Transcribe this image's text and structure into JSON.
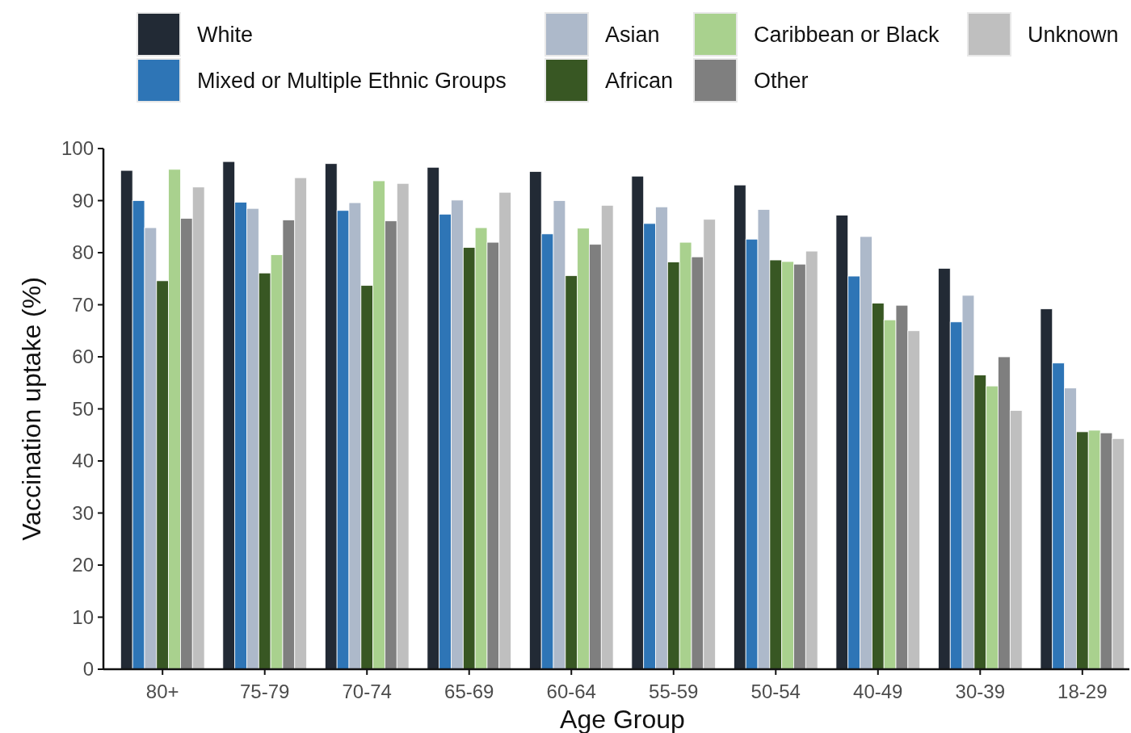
{
  "chart_data": {
    "type": "bar",
    "xlabel": "Age Group",
    "ylabel": "Vaccination uptake (%)",
    "categories": [
      "80+",
      "75-79",
      "70-74",
      "65-69",
      "60-64",
      "55-59",
      "50-54",
      "40-49",
      "30-39",
      "18-29"
    ],
    "series": [
      {
        "name": "White",
        "color": "#222a35",
        "values": [
          95.8,
          97.5,
          97.1,
          96.4,
          95.6,
          94.7,
          93,
          87.2,
          77,
          69.2
        ]
      },
      {
        "name": "Mixed or Multiple Ethnic Groups",
        "color": "#2e75b6",
        "values": [
          90,
          89.7,
          88.1,
          87.4,
          83.6,
          85.6,
          82.6,
          75.5,
          66.7,
          58.8
        ]
      },
      {
        "name": "Asian",
        "color": "#adb9ca",
        "values": [
          84.8,
          88.5,
          89.6,
          90.1,
          90,
          88.8,
          88.3,
          83.1,
          71.8,
          54
        ]
      },
      {
        "name": "African",
        "color": "#385723",
        "values": [
          74.6,
          76.1,
          73.7,
          81,
          75.6,
          78.2,
          78.6,
          70.3,
          56.5,
          45.6
        ]
      },
      {
        "name": "Caribbean or Black",
        "color": "#a9d18e",
        "values": [
          96,
          79.6,
          93.8,
          84.8,
          84.7,
          82,
          78.3,
          67.1,
          54.4,
          45.9
        ]
      },
      {
        "name": "Other",
        "color": "#7f7f7f",
        "values": [
          86.6,
          86.3,
          86.1,
          82,
          81.6,
          79.2,
          77.8,
          69.9,
          60,
          45.4
        ]
      },
      {
        "name": "Unknown",
        "color": "#bfbfbf",
        "values": [
          92.6,
          94.4,
          93.3,
          91.6,
          89.1,
          86.4,
          80.3,
          65,
          49.7,
          44.3
        ]
      }
    ],
    "ylim": [
      0,
      100
    ],
    "yticks": [
      0,
      10,
      20,
      30,
      40,
      50,
      60,
      70,
      80,
      90,
      100
    ],
    "grid": false,
    "legend": "top"
  }
}
